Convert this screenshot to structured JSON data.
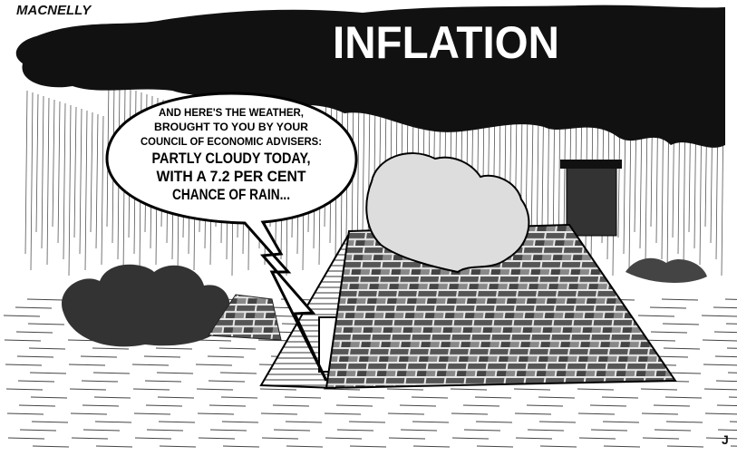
{
  "signature": "MACNELLY",
  "cloud": {
    "label": "INFLATION"
  },
  "speech_bubble": {
    "lines": [
      "AND HERE'S THE WEATHER,",
      "BROUGHT TO YOU BY YOUR",
      "COUNCIL OF ECONOMIC ADVISERS:",
      "PARTLY CLOUDY TODAY,",
      "WITH A 7.2 PER CENT",
      "CHANCE OF RAIN..."
    ]
  },
  "corner_mark": "J"
}
